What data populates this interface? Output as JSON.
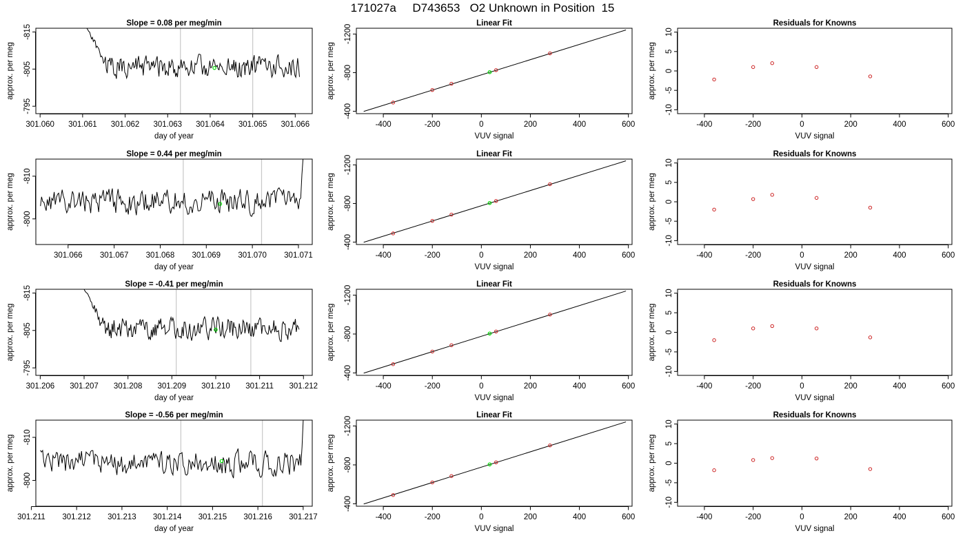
{
  "page": {
    "title": "171027a     D743653   O2 Unknown in Position  15"
  },
  "colors": {
    "trace": "#000000",
    "marker_green": "#00dd00",
    "marker_red": "#cc2222",
    "vertical_lines": "#c8c8c8",
    "fit_line": "#000000"
  },
  "chart_data": [
    {
      "type": "line",
      "title": "Slope =  0.08  per meg/min",
      "xlabel": "day of year",
      "ylabel": "approx. per meg",
      "xlim": [
        301.0599,
        301.0664
      ],
      "ylim": [
        -816,
        -793
      ],
      "y_reversed": true,
      "xticks": [
        301.06,
        301.061,
        301.062,
        301.063,
        301.064,
        301.065,
        301.066
      ],
      "xtick_labels": [
        "301.060",
        "301.061",
        "301.062",
        "301.063",
        "301.064",
        "301.065",
        "301.066"
      ],
      "yticks": [
        -795,
        -805,
        -815
      ],
      "ytick_labels": [
        "-795",
        "-805",
        "-815"
      ],
      "vlines": [
        301.0633,
        301.065
      ],
      "trace": {
        "x_start": 301.0611,
        "x_end": 301.0661,
        "y_start": -816,
        "ramp_to": -806,
        "ramp_frac": 0.09,
        "base": -805.5,
        "amp": 2.6,
        "seed": 11
      },
      "marker": {
        "x": 301.0641,
        "y": -805.3
      }
    },
    {
      "type": "scatter",
      "title": "Linear Fit",
      "xlabel": "VUV signal",
      "ylabel": "approx. per meg",
      "xlim": [
        -510,
        615
      ],
      "ylim": [
        -1260,
        -375
      ],
      "y_reversed": true,
      "xticks": [
        -400,
        -200,
        0,
        200,
        400,
        600
      ],
      "xtick_labels": [
        "-400",
        "-200",
        "0",
        "200",
        "400",
        "600"
      ],
      "yticks": [
        -400,
        -800,
        -1200
      ],
      "ytick_labels": [
        "-400",
        "-800",
        "-1200"
      ],
      "fit_line": {
        "x": [
          -480,
          590
        ],
        "y": [
          -398,
          -1242
        ]
      },
      "knowns": {
        "x": [
          -360,
          -200,
          -122,
          60,
          280
        ],
        "y": [
          -490,
          -620,
          -685,
          -826,
          -1000
        ]
      },
      "unknown": {
        "x": 34,
        "y": -805
      }
    },
    {
      "type": "scatter",
      "title": "Residuals for Knowns",
      "xlabel": "VUV signal",
      "ylabel": "approx. per meg",
      "xlim": [
        -510,
        615
      ],
      "ylim": [
        -11,
        11
      ],
      "xticks": [
        -400,
        -200,
        0,
        200,
        400,
        600
      ],
      "xtick_labels": [
        "-400",
        "-200",
        "0",
        "200",
        "400",
        "600"
      ],
      "yticks": [
        10,
        5,
        0,
        -5,
        -10
      ],
      "ytick_labels": [
        "10",
        "5",
        "0",
        "-5",
        "-10"
      ],
      "points": {
        "x": [
          -360,
          -200,
          -122,
          60,
          280
        ],
        "y": [
          -2.2,
          1.0,
          2.0,
          1.0,
          -1.4
        ]
      }
    },
    {
      "type": "line",
      "title": "Slope =  0.44  per meg/min",
      "xlabel": "day of year",
      "ylabel": "approx. per meg",
      "xlim": [
        301.0653,
        301.0713
      ],
      "ylim": [
        -814,
        -794
      ],
      "y_reversed": true,
      "xticks": [
        301.066,
        301.067,
        301.068,
        301.069,
        301.07,
        301.071
      ],
      "xtick_labels": [
        "301.066",
        "301.067",
        "301.068",
        "301.069",
        "301.070",
        "301.071"
      ],
      "yticks": [
        -800,
        -810
      ],
      "ytick_labels": [
        "-800",
        "-810"
      ],
      "vlines": [
        301.0685,
        301.0702
      ],
      "trace": {
        "x_start": 301.0654,
        "x_end": 301.0711,
        "y_start": -803,
        "ramp_to": -803,
        "ramp_frac": 0.0,
        "base": -804,
        "amp": 2.6,
        "seed": 23,
        "tail_to": -814
      },
      "marker": {
        "x": 301.0693,
        "y": -803.5
      }
    },
    {
      "type": "scatter",
      "title": "Linear Fit",
      "xlabel": "VUV signal",
      "ylabel": "approx. per meg",
      "xlim": [
        -510,
        615
      ],
      "ylim": [
        -1260,
        -375
      ],
      "y_reversed": true,
      "xticks": [
        -400,
        -200,
        0,
        200,
        400,
        600
      ],
      "xtick_labels": [
        "-400",
        "-200",
        "0",
        "200",
        "400",
        "600"
      ],
      "yticks": [
        -400,
        -800,
        -1200
      ],
      "ytick_labels": [
        "-400",
        "-800",
        "-1200"
      ],
      "fit_line": {
        "x": [
          -480,
          590
        ],
        "y": [
          -398,
          -1242
        ]
      },
      "knowns": {
        "x": [
          -360,
          -200,
          -122,
          60,
          280
        ],
        "y": [
          -490,
          -620,
          -685,
          -826,
          -1000
        ]
      },
      "unknown": {
        "x": 34,
        "y": -805
      }
    },
    {
      "type": "scatter",
      "title": "Residuals for Knowns",
      "xlabel": "VUV signal",
      "ylabel": "approx. per meg",
      "xlim": [
        -510,
        615
      ],
      "ylim": [
        -11,
        11
      ],
      "xticks": [
        -400,
        -200,
        0,
        200,
        400,
        600
      ],
      "xtick_labels": [
        "-400",
        "-200",
        "0",
        "200",
        "400",
        "600"
      ],
      "yticks": [
        10,
        5,
        0,
        -5,
        -10
      ],
      "ytick_labels": [
        "10",
        "5",
        "0",
        "-5",
        "-10"
      ],
      "points": {
        "x": [
          -360,
          -200,
          -122,
          60,
          280
        ],
        "y": [
          -2.0,
          0.7,
          1.8,
          1.0,
          -1.5
        ]
      }
    },
    {
      "type": "line",
      "title": "Slope =  -0.41  per meg/min",
      "xlabel": "day of year",
      "ylabel": "approx. per meg",
      "xlim": [
        301.2059,
        301.2122
      ],
      "ylim": [
        -816,
        -793
      ],
      "y_reversed": true,
      "xticks": [
        301.206,
        301.207,
        301.208,
        301.209,
        301.21,
        301.211,
        301.212
      ],
      "xtick_labels": [
        "301.206",
        "301.207",
        "301.208",
        "301.209",
        "301.210",
        "301.211",
        "301.212"
      ],
      "yticks": [
        -795,
        -805,
        -815
      ],
      "ytick_labels": [
        "-795",
        "-805",
        "-815"
      ],
      "vlines": [
        301.2091,
        301.2108
      ],
      "trace": {
        "x_start": 301.207,
        "x_end": 301.2119,
        "y_start": -816,
        "ramp_to": -806,
        "ramp_frac": 0.09,
        "base": -805.5,
        "amp": 2.6,
        "seed": 37
      },
      "marker": {
        "x": 301.21,
        "y": -805.2
      }
    },
    {
      "type": "scatter",
      "title": "Linear Fit",
      "xlabel": "VUV signal",
      "ylabel": "approx. per meg",
      "xlim": [
        -510,
        615
      ],
      "ylim": [
        -1260,
        -375
      ],
      "y_reversed": true,
      "xticks": [
        -400,
        -200,
        0,
        200,
        400,
        600
      ],
      "xtick_labels": [
        "-400",
        "-200",
        "0",
        "200",
        "400",
        "600"
      ],
      "yticks": [
        -400,
        -800,
        -1200
      ],
      "ytick_labels": [
        "-400",
        "-800",
        "-1200"
      ],
      "fit_line": {
        "x": [
          -480,
          590
        ],
        "y": [
          -398,
          -1242
        ]
      },
      "knowns": {
        "x": [
          -360,
          -200,
          -122,
          60,
          280
        ],
        "y": [
          -490,
          -620,
          -685,
          -826,
          -1000
        ]
      },
      "unknown": {
        "x": 34,
        "y": -805
      }
    },
    {
      "type": "scatter",
      "title": "Residuals for Knowns",
      "xlabel": "VUV signal",
      "ylabel": "approx. per meg",
      "xlim": [
        -510,
        615
      ],
      "ylim": [
        -11,
        11
      ],
      "xticks": [
        -400,
        -200,
        0,
        200,
        400,
        600
      ],
      "xtick_labels": [
        "-400",
        "-200",
        "0",
        "200",
        "400",
        "600"
      ],
      "yticks": [
        10,
        5,
        0,
        -5,
        -10
      ],
      "ytick_labels": [
        "10",
        "5",
        "0",
        "-5",
        "-10"
      ],
      "points": {
        "x": [
          -360,
          -200,
          -122,
          60,
          280
        ],
        "y": [
          -2.0,
          1.0,
          1.6,
          1.0,
          -1.3
        ]
      }
    },
    {
      "type": "line",
      "title": "Slope =  -0.56  per meg/min",
      "xlabel": "day of year",
      "ylabel": "approx. per meg",
      "xlim": [
        301.2111,
        301.2172
      ],
      "ylim": [
        -814,
        -794
      ],
      "y_reversed": true,
      "xticks": [
        301.211,
        301.212,
        301.213,
        301.214,
        301.215,
        301.216,
        301.217
      ],
      "xtick_labels": [
        "301.211",
        "301.212",
        "301.213",
        "301.214",
        "301.215",
        "301.216",
        "301.217"
      ],
      "yticks": [
        -800,
        -810
      ],
      "ytick_labels": [
        "-800",
        "-810"
      ],
      "vlines": [
        301.2143,
        301.2161
      ],
      "trace": {
        "x_start": 301.2112,
        "x_end": 301.217,
        "y_start": -807,
        "ramp_to": -807,
        "ramp_frac": 0.0,
        "base": -804,
        "amp": 2.6,
        "seed": 53,
        "tail_to": -814
      },
      "marker": {
        "x": 301.2152,
        "y": -804.5
      }
    },
    {
      "type": "scatter",
      "title": "Linear Fit",
      "xlabel": "VUV signal",
      "ylabel": "approx. per meg",
      "xlim": [
        -510,
        615
      ],
      "ylim": [
        -1260,
        -375
      ],
      "y_reversed": true,
      "xticks": [
        -400,
        -200,
        0,
        200,
        400,
        600
      ],
      "xtick_labels": [
        "-400",
        "-200",
        "0",
        "200",
        "400",
        "600"
      ],
      "yticks": [
        -400,
        -800,
        -1200
      ],
      "ytick_labels": [
        "-400",
        "-800",
        "-1200"
      ],
      "fit_line": {
        "x": [
          -480,
          590
        ],
        "y": [
          -398,
          -1242
        ]
      },
      "knowns": {
        "x": [
          -360,
          -200,
          -122,
          60,
          280
        ],
        "y": [
          -490,
          -620,
          -685,
          -826,
          -1000
        ]
      },
      "unknown": {
        "x": 34,
        "y": -805
      }
    },
    {
      "type": "scatter",
      "title": "Residuals for Knowns",
      "xlabel": "VUV signal",
      "ylabel": "approx. per meg",
      "xlim": [
        -510,
        615
      ],
      "ylim": [
        -11,
        11
      ],
      "xticks": [
        -400,
        -200,
        0,
        200,
        400,
        600
      ],
      "xtick_labels": [
        "-400",
        "-200",
        "0",
        "200",
        "400",
        "600"
      ],
      "yticks": [
        10,
        5,
        0,
        -5,
        -10
      ],
      "ytick_labels": [
        "10",
        "5",
        "0",
        "-5",
        "-10"
      ],
      "points": {
        "x": [
          -360,
          -200,
          -122,
          60,
          280
        ],
        "y": [
          -1.8,
          0.8,
          1.3,
          1.2,
          -1.5
        ]
      }
    }
  ]
}
